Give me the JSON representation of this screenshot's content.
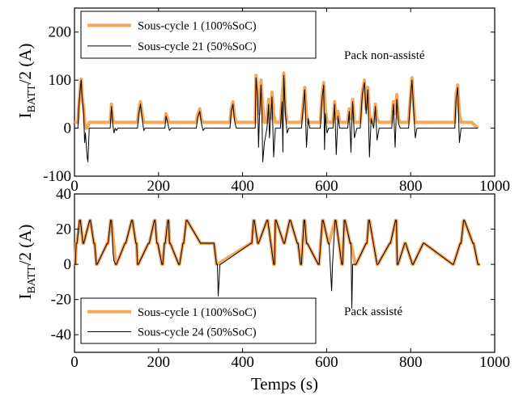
{
  "chart_data": [
    {
      "type": "line",
      "title": "",
      "xlabel": "",
      "ylabel_main": "I",
      "ylabel_sub": "BATT",
      "ylabel_tail": "/2 (A)",
      "xlim": [
        0,
        1000
      ],
      "ylim": [
        -100,
        250
      ],
      "xticks": [
        0,
        200,
        400,
        600,
        800,
        1000
      ],
      "yticks": [
        -100,
        0,
        100,
        200
      ],
      "grid": false,
      "legend_position": "top-left",
      "annotation": "Pack non-assisté",
      "colors": {
        "series1": "#f5a85a",
        "series2": "#000000"
      },
      "series": [
        {
          "name": "Sous-cycle 1 (100%SoC)",
          "x": [
            0,
            8,
            10,
            14,
            16,
            18,
            22,
            24,
            26,
            30,
            35,
            85,
            88,
            91,
            94,
            97,
            150,
            153,
            157,
            161,
            165,
            168,
            215,
            218,
            222,
            226,
            230,
            290,
            293,
            298,
            302,
            306,
            310,
            370,
            373,
            377,
            381,
            385,
            430,
            432,
            436,
            440,
            444,
            448,
            452,
            458,
            462,
            466,
            470,
            474,
            478,
            490,
            494,
            498,
            502,
            506,
            510,
            540,
            544,
            548,
            552,
            556,
            560,
            585,
            589,
            593,
            597,
            601,
            605,
            615,
            619,
            623,
            627,
            631,
            650,
            654,
            658,
            662,
            666,
            672,
            680,
            685,
            690,
            694,
            698,
            702,
            706,
            712,
            716,
            720,
            725,
            755,
            759,
            763,
            767,
            771,
            775,
            795,
            799,
            803,
            807,
            811,
            815,
            820,
            905,
            908,
            912,
            916,
            920,
            928,
            945,
            960
          ],
          "y": [
            12,
            12,
            45,
            90,
            102,
            72,
            40,
            12,
            0,
            0,
            12,
            12,
            50,
            20,
            12,
            12,
            12,
            38,
            55,
            30,
            12,
            12,
            12,
            30,
            18,
            12,
            12,
            12,
            28,
            40,
            18,
            12,
            12,
            12,
            40,
            55,
            25,
            12,
            12,
            110,
            70,
            30,
            100,
            45,
            12,
            12,
            60,
            20,
            75,
            30,
            12,
            12,
            65,
            115,
            40,
            12,
            12,
            12,
            45,
            85,
            30,
            12,
            12,
            12,
            70,
            95,
            40,
            12,
            12,
            12,
            55,
            20,
            35,
            12,
            12,
            40,
            20,
            60,
            12,
            12,
            12,
            75,
            100,
            40,
            85,
            30,
            12,
            12,
            50,
            20,
            12,
            12,
            55,
            30,
            70,
            20,
            12,
            12,
            60,
            105,
            50,
            12,
            12,
            12,
            12,
            70,
            90,
            30,
            12,
            12,
            12,
            0
          ]
        },
        {
          "name": "Sous-cycle 21 (50%SoC)",
          "x": [
            0,
            8,
            10,
            14,
            16,
            18,
            22,
            24,
            26,
            30,
            32,
            35,
            85,
            88,
            91,
            94,
            97,
            100,
            103,
            150,
            153,
            157,
            161,
            165,
            168,
            215,
            218,
            222,
            226,
            230,
            290,
            293,
            298,
            302,
            306,
            310,
            370,
            373,
            377,
            381,
            385,
            430,
            432,
            436,
            438,
            440,
            444,
            446,
            448,
            452,
            458,
            462,
            464,
            466,
            470,
            474,
            478,
            490,
            494,
            496,
            498,
            502,
            506,
            510,
            540,
            544,
            548,
            552,
            556,
            560,
            585,
            589,
            593,
            595,
            597,
            601,
            605,
            615,
            619,
            623,
            627,
            631,
            650,
            654,
            658,
            660,
            662,
            666,
            672,
            680,
            685,
            690,
            694,
            698,
            702,
            706,
            712,
            716,
            720,
            725,
            755,
            759,
            763,
            767,
            771,
            775,
            795,
            799,
            803,
            807,
            811,
            815,
            820,
            905,
            908,
            912,
            916,
            920,
            928,
            945,
            960
          ],
          "y": [
            0,
            0,
            40,
            85,
            100,
            65,
            30,
            -30,
            -10,
            -60,
            -70,
            0,
            0,
            45,
            10,
            -10,
            0,
            -5,
            0,
            0,
            30,
            50,
            20,
            -5,
            0,
            0,
            25,
            10,
            -5,
            0,
            0,
            22,
            35,
            10,
            -5,
            0,
            0,
            35,
            50,
            15,
            0,
            0,
            105,
            60,
            -40,
            20,
            90,
            35,
            -70,
            -30,
            0,
            50,
            -20,
            10,
            65,
            -60,
            0,
            0,
            55,
            -50,
            110,
            30,
            -10,
            0,
            0,
            40,
            80,
            -40,
            20,
            0,
            0,
            60,
            90,
            -45,
            30,
            -10,
            0,
            0,
            50,
            -55,
            25,
            0,
            0,
            35,
            -50,
            10,
            55,
            -20,
            0,
            0,
            70,
            95,
            30,
            80,
            -60,
            20,
            0,
            45,
            -25,
            0,
            0,
            50,
            -40,
            60,
            10,
            0,
            0,
            55,
            100,
            40,
            -20,
            0,
            0,
            0,
            60,
            85,
            -30,
            0,
            0,
            0,
            0
          ]
        }
      ]
    },
    {
      "type": "line",
      "title": "",
      "xlabel": "Temps (s)",
      "ylabel_main": "I",
      "ylabel_sub": "BATT",
      "ylabel_tail": "/2 (A)",
      "xlim": [
        0,
        1000
      ],
      "ylim": [
        -50,
        40
      ],
      "xticks": [
        0,
        200,
        400,
        600,
        800,
        1000
      ],
      "yticks": [
        -40,
        -20,
        0,
        20,
        40
      ],
      "grid": false,
      "legend_position": "bottom-left",
      "annotation": "Pack assisté",
      "colors": {
        "series1": "#f5a85a",
        "series2": "#000000"
      },
      "series": [
        {
          "name": "Sous-cycle 1 (100%SoC)",
          "x": [
            0,
            2,
            4,
            6,
            12,
            14,
            20,
            22,
            36,
            38,
            46,
            48,
            52,
            54,
            78,
            80,
            86,
            88,
            98,
            100,
            120,
            122,
            136,
            138,
            146,
            148,
            150,
            152,
            176,
            178,
            190,
            192,
            196,
            198,
            208,
            210,
            214,
            216,
            222,
            224,
            226,
            228,
            248,
            250,
            258,
            260,
            266,
            268,
            300,
            302,
            330,
            332,
            338,
            340,
            420,
            422,
            426,
            428,
            436,
            438,
            458,
            460,
            474,
            476,
            478,
            480,
            498,
            500,
            512,
            514,
            530,
            532,
            538,
            540,
            546,
            548,
            552,
            554,
            580,
            582,
            590,
            592,
            604,
            606,
            620,
            622,
            636,
            638,
            642,
            644,
            656,
            658,
            668,
            670,
            694,
            696,
            700,
            702,
            720,
            722,
            750,
            752,
            764,
            766,
            768,
            770,
            786,
            788,
            804,
            806,
            830,
            832,
            900,
            902,
            918,
            920,
            926,
            928,
            948,
            950,
            960,
            962,
            965
          ],
          "y": [
            0,
            0,
            12,
            12,
            25,
            25,
            12,
            12,
            25,
            25,
            12,
            12,
            0,
            0,
            12,
            12,
            25,
            25,
            0,
            0,
            12,
            12,
            25,
            25,
            12,
            12,
            0,
            0,
            12,
            12,
            25,
            25,
            12,
            12,
            0,
            0,
            12,
            12,
            25,
            25,
            12,
            12,
            0,
            0,
            12,
            12,
            25,
            25,
            12,
            12,
            12,
            12,
            0,
            0,
            12,
            12,
            25,
            25,
            12,
            12,
            25,
            25,
            0,
            0,
            25,
            25,
            12,
            12,
            25,
            25,
            12,
            12,
            0,
            0,
            25,
            25,
            12,
            12,
            0,
            0,
            25,
            25,
            12,
            12,
            25,
            25,
            0,
            0,
            25,
            25,
            12,
            12,
            0,
            0,
            12,
            12,
            25,
            25,
            0,
            0,
            12,
            12,
            25,
            25,
            0,
            0,
            12,
            12,
            0,
            0,
            12,
            12,
            0,
            0,
            12,
            12,
            25,
            25,
            12,
            12,
            0,
            0,
            0
          ]
        },
        {
          "name": "Sous-cycle 24 (50%SoC)",
          "x": [
            0,
            2,
            4,
            6,
            12,
            14,
            20,
            22,
            36,
            38,
            46,
            48,
            52,
            54,
            78,
            80,
            86,
            88,
            92,
            94,
            98,
            100,
            120,
            122,
            136,
            138,
            146,
            148,
            150,
            152,
            176,
            178,
            190,
            192,
            196,
            198,
            208,
            210,
            214,
            216,
            222,
            224,
            226,
            228,
            248,
            250,
            258,
            260,
            266,
            268,
            300,
            302,
            330,
            332,
            338,
            340,
            342,
            344,
            346,
            348,
            420,
            422,
            426,
            428,
            436,
            438,
            458,
            460,
            474,
            476,
            478,
            480,
            498,
            500,
            512,
            514,
            530,
            532,
            538,
            540,
            546,
            548,
            552,
            554,
            580,
            582,
            590,
            592,
            604,
            606,
            612,
            614,
            620,
            622,
            636,
            638,
            642,
            644,
            656,
            658,
            660,
            662,
            668,
            670,
            694,
            696,
            700,
            702,
            720,
            722,
            750,
            752,
            764,
            766,
            768,
            770,
            786,
            788,
            804,
            806,
            830,
            832,
            900,
            902,
            918,
            920,
            926,
            928,
            948,
            950,
            960,
            962,
            965
          ],
          "y": [
            0,
            0,
            12,
            12,
            25,
            25,
            12,
            12,
            25,
            25,
            12,
            12,
            0,
            0,
            12,
            12,
            25,
            25,
            6,
            2,
            0,
            0,
            12,
            12,
            25,
            25,
            12,
            12,
            0,
            0,
            12,
            12,
            25,
            25,
            12,
            12,
            0,
            0,
            12,
            12,
            25,
            25,
            12,
            12,
            0,
            0,
            12,
            12,
            25,
            25,
            12,
            12,
            12,
            12,
            0,
            0,
            -18,
            -10,
            0,
            0,
            12,
            12,
            25,
            25,
            12,
            12,
            25,
            25,
            0,
            0,
            25,
            25,
            12,
            12,
            25,
            25,
            12,
            12,
            0,
            0,
            25,
            25,
            12,
            12,
            0,
            0,
            25,
            25,
            12,
            12,
            -15,
            0,
            25,
            25,
            0,
            0,
            25,
            25,
            12,
            12,
            -25,
            0,
            0,
            0,
            12,
            12,
            25,
            25,
            0,
            0,
            12,
            12,
            25,
            25,
            0,
            0,
            12,
            12,
            0,
            0,
            12,
            12,
            0,
            0,
            12,
            12,
            25,
            25,
            12,
            12,
            0,
            0,
            0
          ]
        }
      ]
    }
  ]
}
